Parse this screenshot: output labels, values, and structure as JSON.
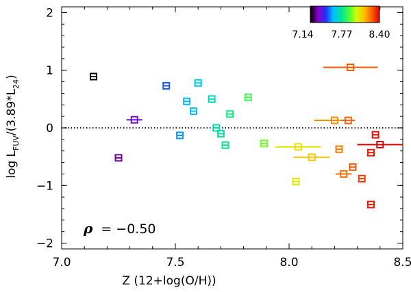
{
  "chart_data": {
    "type": "scatter",
    "title": "",
    "xlabel": "Z (12+log(O/H))",
    "ylabel_parts": {
      "log": "log L",
      "sub1": "FUV",
      "mid": "/(3.89*L",
      "sub2": "24",
      "close": ")"
    },
    "xlim": [
      7.0,
      8.5
    ],
    "ylim": [
      -2.1,
      2.1
    ],
    "xticks": [
      7.0,
      7.5,
      8.0,
      8.5
    ],
    "xtick_labels": [
      "7.0",
      "7.5",
      "8.0",
      "8.5"
    ],
    "yticks": [
      -2,
      -1,
      0,
      1,
      2
    ],
    "ytick_labels": [
      "−2",
      "−1",
      "0",
      "1",
      "2"
    ],
    "reference_line_y": 0,
    "annotation": {
      "symbol": "ρ",
      "text": "= −0.50"
    },
    "colorbar": {
      "tick_labels": [
        "7.14",
        "7.77",
        "8.40"
      ],
      "range": [
        7.14,
        8.4
      ],
      "colors": [
        "#000000",
        "#8a00c8",
        "#2030ff",
        "#00c0ff",
        "#00e0a0",
        "#40ff40",
        "#d0ff00",
        "#ffc000",
        "#ff6000",
        "#e00000"
      ]
    },
    "points": [
      {
        "x": 7.14,
        "y": 0.89,
        "xerr": 0.015
      },
      {
        "x": 7.25,
        "y": -0.52,
        "xerr": 0.015
      },
      {
        "x": 7.32,
        "y": 0.14,
        "xerr": 0.035
      },
      {
        "x": 7.46,
        "y": 0.73,
        "xerr": 0.015
      },
      {
        "x": 7.52,
        "y": -0.13,
        "xerr": 0.015
      },
      {
        "x": 7.55,
        "y": 0.46,
        "xerr": 0.015
      },
      {
        "x": 7.58,
        "y": 0.29,
        "xerr": 0.015
      },
      {
        "x": 7.6,
        "y": 0.78,
        "xerr": 0.015
      },
      {
        "x": 7.66,
        "y": 0.5,
        "xerr": 0.015
      },
      {
        "x": 7.68,
        "y": 0.0,
        "xerr": 0.015
      },
      {
        "x": 7.7,
        "y": -0.1,
        "xerr": 0.015
      },
      {
        "x": 7.72,
        "y": -0.3,
        "xerr": 0.015
      },
      {
        "x": 7.74,
        "y": 0.24,
        "xerr": 0.015
      },
      {
        "x": 7.82,
        "y": 0.53,
        "xerr": 0.015
      },
      {
        "x": 7.89,
        "y": -0.27,
        "xerr": 0.015
      },
      {
        "x": 8.03,
        "y": -0.93,
        "xerr": 0.015
      },
      {
        "x": 8.04,
        "y": -0.33,
        "xerr": 0.1
      },
      {
        "x": 8.1,
        "y": -0.51,
        "xerr": 0.08
      },
      {
        "x": 8.2,
        "y": 0.13,
        "xerr": 0.09
      },
      {
        "x": 8.22,
        "y": -0.37,
        "xerr": 0.015
      },
      {
        "x": 8.24,
        "y": -0.8,
        "xerr": 0.035
      },
      {
        "x": 8.27,
        "y": 1.05,
        "xerr": 0.12
      },
      {
        "x": 8.26,
        "y": 0.13,
        "xerr": 0.03
      },
      {
        "x": 8.28,
        "y": -0.68,
        "xerr": 0.015
      },
      {
        "x": 8.32,
        "y": -0.88,
        "xerr": 0.015
      },
      {
        "x": 8.36,
        "y": -0.43,
        "xerr": 0.015
      },
      {
        "x": 8.38,
        "y": -0.12,
        "xerr": 0.015
      },
      {
        "x": 8.36,
        "y": -1.33,
        "xerr": 0.015
      },
      {
        "x": 8.4,
        "y": -0.29,
        "xerr": 0.1
      }
    ]
  }
}
